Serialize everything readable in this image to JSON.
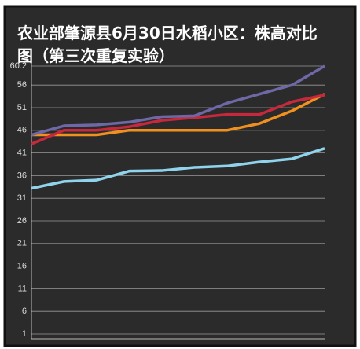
{
  "chart_data": {
    "type": "line",
    "title": "农业部肇源县6月30日水稻小区：株高对比图（第三次重复实验）",
    "categories": [
      null,
      null,
      null,
      null,
      null,
      null,
      null,
      null,
      null,
      null
    ],
    "series": [
      {
        "color": "#8fd3ec",
        "values": [
          33.2,
          34.7,
          35,
          37,
          37.1,
          37.8,
          38.1,
          39,
          39.7,
          42
        ]
      },
      {
        "color": "#f0901e",
        "values": [
          45,
          45,
          45,
          46,
          46,
          46,
          46,
          47.5,
          50.3,
          54
        ]
      },
      {
        "color": "#c8283c",
        "values": [
          43,
          46,
          46,
          46.8,
          48.2,
          48.8,
          49.5,
          49.5,
          52.3,
          53.8
        ]
      },
      {
        "color": "#6e68a6",
        "values": [
          45,
          47,
          47.2,
          47.8,
          49,
          49.2,
          52,
          54,
          56,
          60.2
        ]
      }
    ],
    "ylim": [
      1,
      60.2
    ],
    "yticks": [
      1,
      6,
      11,
      16,
      21,
      26,
      31,
      36,
      41,
      46,
      51,
      56,
      60.2
    ],
    "grid": true
  }
}
